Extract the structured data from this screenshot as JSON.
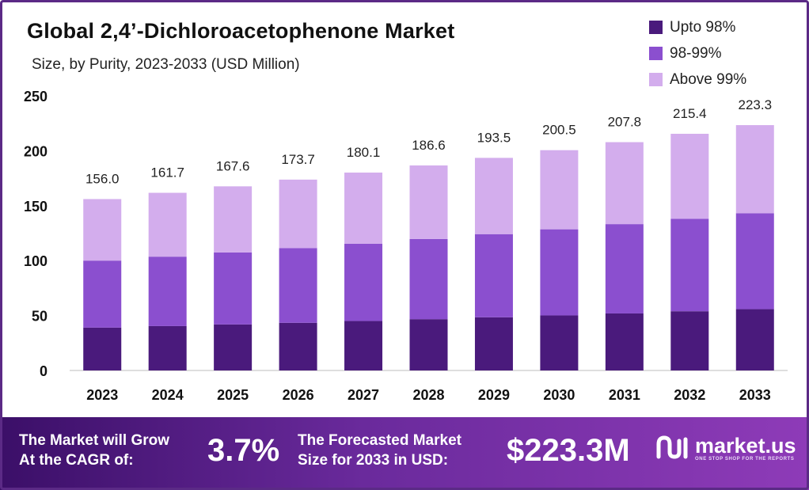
{
  "header": {
    "title": "Global 2,4’-Dichloroacetophenone Market",
    "subtitle": "Size, by Purity, 2023-2033 (USD Million)"
  },
  "legend": [
    {
      "label": "Upto 98%",
      "color": "#4a1a7c"
    },
    {
      "label": "98-99%",
      "color": "#8b4fcf"
    },
    {
      "label": "Above 99%",
      "color": "#d3aded"
    }
  ],
  "chart_data": {
    "type": "bar",
    "stacked": true,
    "categories": [
      "2023",
      "2024",
      "2025",
      "2026",
      "2027",
      "2028",
      "2029",
      "2030",
      "2031",
      "2032",
      "2033"
    ],
    "series": [
      {
        "name": "Upto 98%",
        "color": "#4a1a7c",
        "values": [
          39.0,
          40.4,
          41.9,
          43.4,
          45.0,
          46.7,
          48.4,
          50.1,
          51.9,
          53.9,
          55.8
        ]
      },
      {
        "name": "98-99%",
        "color": "#8b4fcf",
        "values": [
          61.0,
          63.2,
          65.5,
          67.9,
          70.4,
          73.0,
          75.7,
          78.4,
          81.3,
          84.2,
          87.3
        ]
      },
      {
        "name": "Above 99%",
        "color": "#d3aded",
        "values": [
          56.0,
          58.1,
          60.2,
          62.4,
          64.7,
          66.9,
          69.4,
          72.0,
          74.6,
          77.3,
          80.2
        ]
      }
    ],
    "totals": [
      "156.0",
      "161.7",
      "167.6",
      "173.7",
      "180.1",
      "186.6",
      "193.5",
      "200.5",
      "207.8",
      "215.4",
      "223.3"
    ],
    "yticks": [
      "0",
      "50",
      "100",
      "150",
      "200",
      "250"
    ],
    "ylim": [
      0,
      250
    ],
    "grid": false,
    "legend_position": "top-right"
  },
  "banner": {
    "cagr_label_line1": "The Market will Grow",
    "cagr_label_line2": "At the CAGR of:",
    "cagr_value": "3.7%",
    "forecast_label_line1": "The Forecasted Market",
    "forecast_label_line2": "Size for 2033 in USD:",
    "forecast_value": "$223.3M",
    "brand_name": "market.us",
    "brand_tagline": "ONE STOP SHOP FOR THE REPORTS"
  }
}
